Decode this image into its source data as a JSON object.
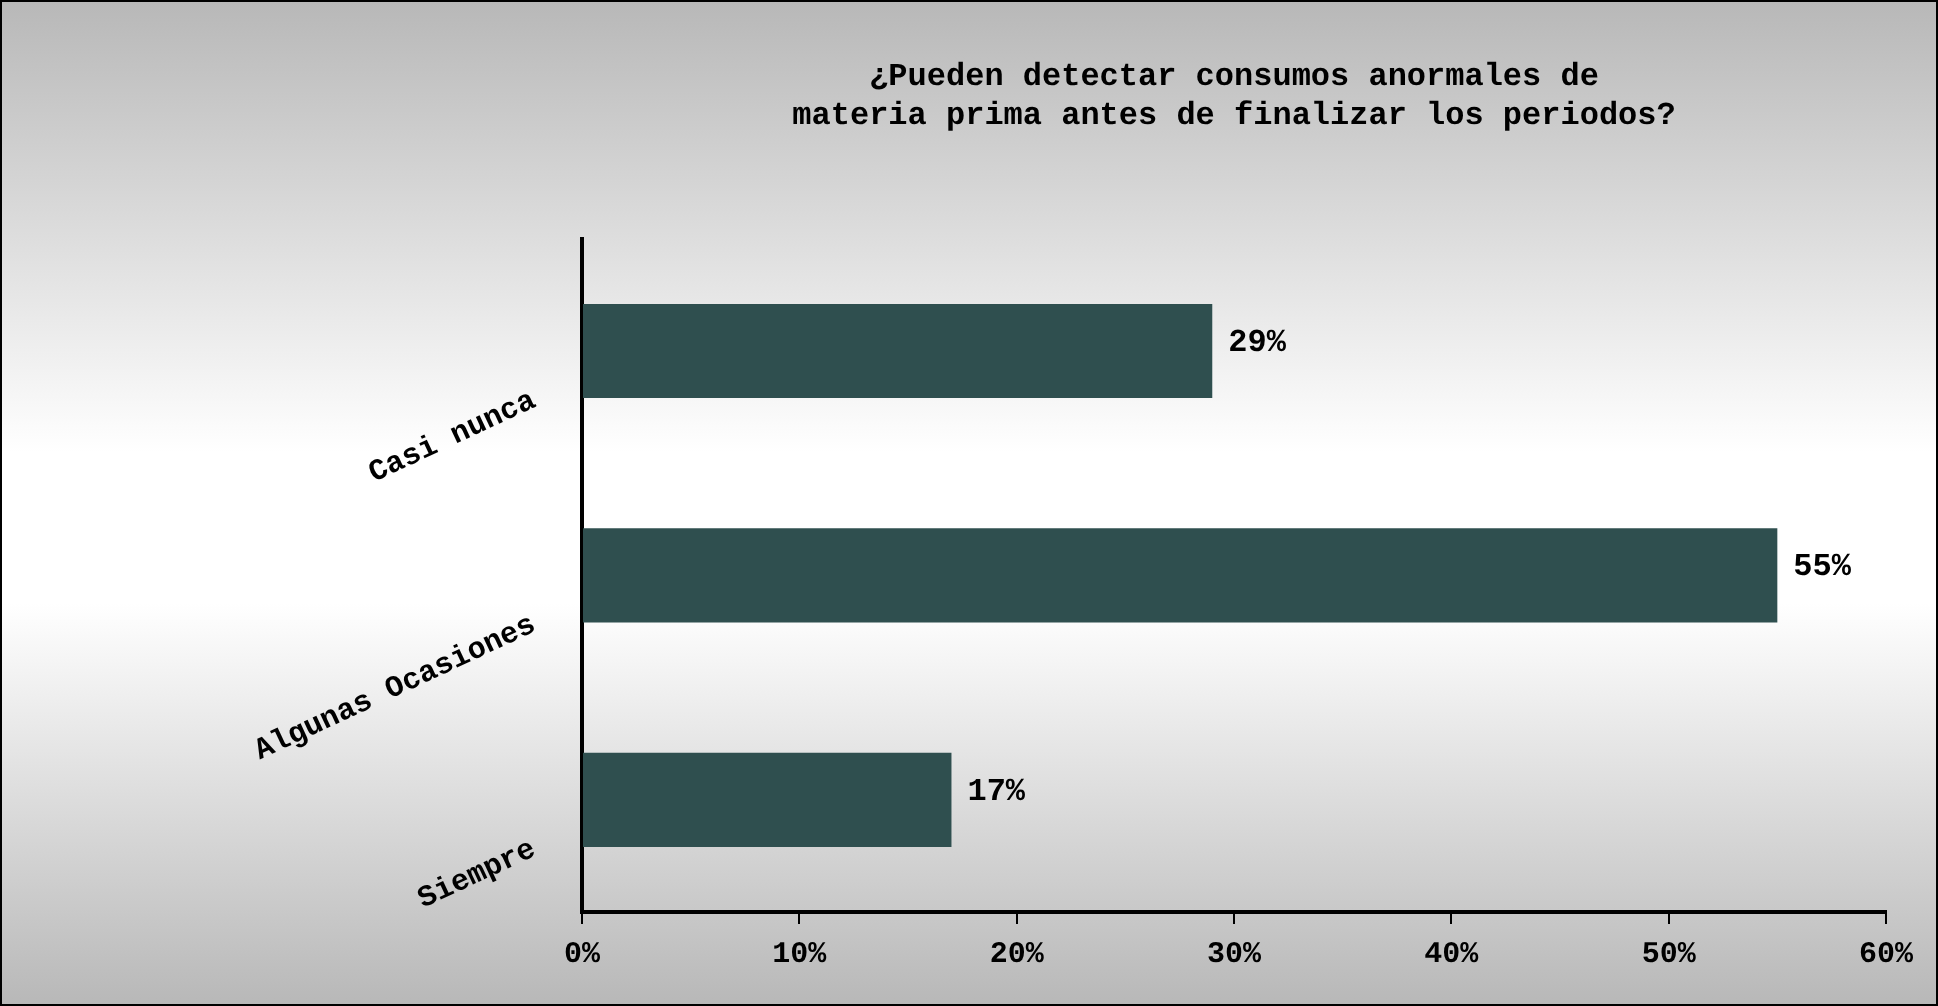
{
  "chart_data": {
    "type": "bar",
    "orientation": "horizontal",
    "title": "¿Pueden detectar consumos anormales de materia prima antes de finalizar los periodos?",
    "categories": [
      "Casi nunca",
      "Algunas Ocasiones",
      "Siempre"
    ],
    "values": [
      29,
      55,
      17
    ],
    "value_labels": [
      "29%",
      "55%",
      "17%"
    ],
    "color": "#2f4f4f",
    "xlim": [
      0,
      60
    ],
    "xticks": [
      {
        "value": 0,
        "label": "0%"
      },
      {
        "value": 10,
        "label": "10%"
      },
      {
        "value": 20,
        "label": "20%"
      },
      {
        "value": 30,
        "label": "30%"
      },
      {
        "value": 40,
        "label": "40%"
      },
      {
        "value": 50,
        "label": "50%"
      },
      {
        "value": 60,
        "label": "60%"
      }
    ],
    "grid": false,
    "legend": false
  }
}
